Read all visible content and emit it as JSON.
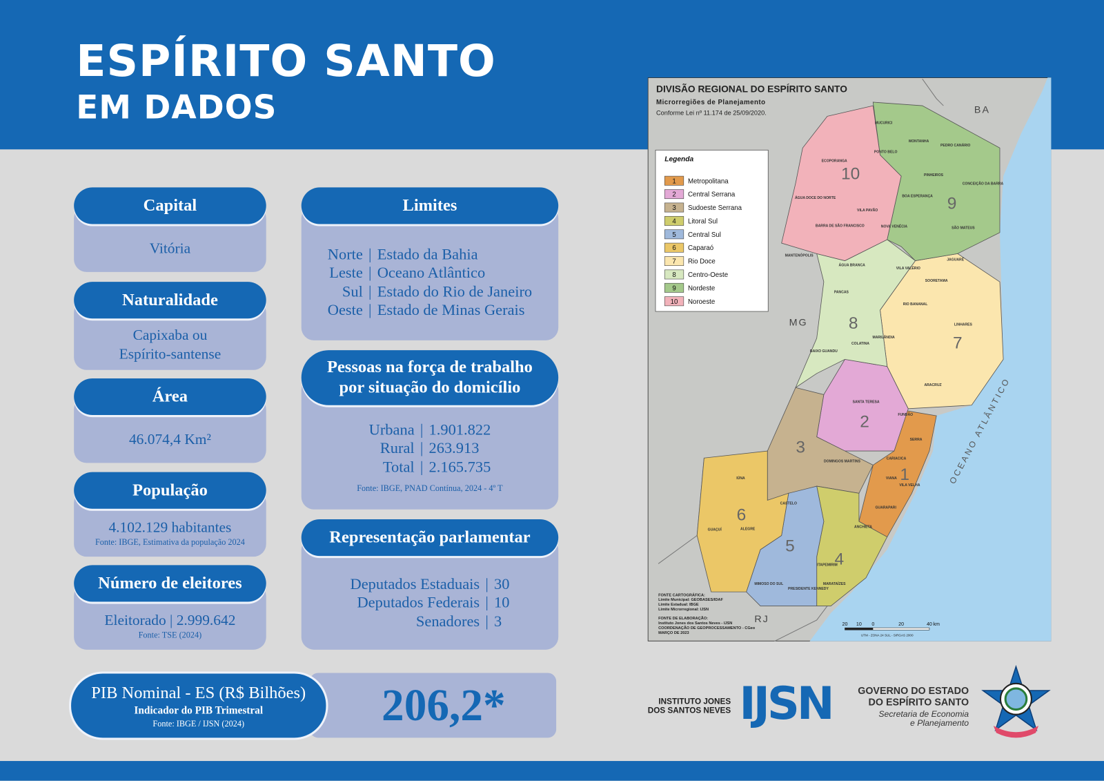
{
  "header": {
    "title": "ESPÍRITO SANTO",
    "subtitle": "EM DADOS"
  },
  "capital": {
    "title": "Capital",
    "value": "Vitória"
  },
  "naturalidade": {
    "title": "Naturalidade",
    "lines": [
      "Capixaba ou",
      "Espírito-santense"
    ]
  },
  "area": {
    "title": "Área",
    "value": "46.074,4 Km²"
  },
  "populacao": {
    "title": "População",
    "value": "4.102.129 habitantes",
    "source": "Fonte: IBGE, Estimativa da população 2024"
  },
  "eleitores": {
    "title": "Número de eleitores",
    "value": "Eleitorado | 2.999.642",
    "source": "Fonte: TSE (2024)"
  },
  "limites": {
    "title": "Limites",
    "separator": "|",
    "rows": [
      {
        "label": "Norte",
        "value": "Estado da Bahia"
      },
      {
        "label": "Leste",
        "value": "Oceano Atlântico"
      },
      {
        "label": "Sul",
        "value": "Estado do Rio de Janeiro"
      },
      {
        "label": "Oeste",
        "value": "Estado de Minas Gerais"
      }
    ]
  },
  "forca_trabalho": {
    "title_lines": [
      "Pessoas na força de trabalho",
      "por situação do domicílio"
    ],
    "separator": "|",
    "rows": [
      {
        "label": "Urbana",
        "value": "1.901.822"
      },
      {
        "label": "Rural",
        "value": "263.913"
      },
      {
        "label": "Total",
        "value": "2.165.735"
      }
    ],
    "source": "Fonte: IBGE, PNAD Contínua, 2024 - 4º T"
  },
  "representacao": {
    "title": "Representação parlamentar",
    "separator": "|",
    "rows": [
      {
        "label": "Deputados Estaduais",
        "value": "30"
      },
      {
        "label": "Deputados Federais",
        "value": "10"
      },
      {
        "label": "Senadores",
        "value": "3"
      }
    ]
  },
  "pib": {
    "title": "PIB Nominal - ES (R$ Bilhões)",
    "subtitle": "Indicador do PIB Trimestral",
    "source": "Fonte: IBGE / IJSN (2024)",
    "value": "206,2*"
  },
  "map": {
    "title": "DIVISÃO REGIONAL DO ESPÍRITO SANTO",
    "subtitle": "Microrregiões de Planejamento",
    "law": "Conforme Lei nº 11.174 de 25/09/2020.",
    "legend_title": "Legenda",
    "legend": [
      {
        "number": "1",
        "name": "Metropolitana",
        "color": "#e29a4c"
      },
      {
        "number": "2",
        "name": "Central Serrana",
        "color": "#e3a9d6"
      },
      {
        "number": "3",
        "name": "Sudoeste Serrana",
        "color": "#c6b28f"
      },
      {
        "number": "4",
        "name": "Litoral Sul",
        "color": "#cfcd6c"
      },
      {
        "number": "5",
        "name": "Central Sul",
        "color": "#9fb9dc"
      },
      {
        "number": "6",
        "name": "Caparaó",
        "color": "#ebc767"
      },
      {
        "number": "7",
        "name": "Rio Doce",
        "color": "#fbe6ae"
      },
      {
        "number": "8",
        "name": "Centro-Oeste",
        "color": "#d7e8c0"
      },
      {
        "number": "9",
        "name": "Nordeste",
        "color": "#a4c98b"
      },
      {
        "number": "10",
        "name": "Noroeste",
        "color": "#f2b2ba"
      }
    ],
    "neighbors": [
      "BA",
      "MG",
      "RJ"
    ],
    "ocean": "OCEANO ATLÂNTICO",
    "municipalities": [
      "MUCURICI",
      "MONTANHA",
      "PEDRO CANÁRIO",
      "PONTO BELO",
      "ECOPORANGA",
      "PINHEIROS",
      "CONCEIÇÃO DA BARRA",
      "BOA ESPERANÇA",
      "ÁGUA DOCE DO NORTE",
      "VILA PAVÃO",
      "SÃO MATEUS",
      "BARRA DE SÃO FRANCISCO",
      "NOVA VENÉCIA",
      "MANTENÓPOLIS",
      "JAGUARÉ",
      "ÁGUA BRANCA",
      "VILA VALÉRIO",
      "SOORETAMA",
      "PANCAS",
      "RIO BANANAL",
      "LINHARES",
      "COLATINA",
      "MARILÂNDIA",
      "BAIXO GUANDU",
      "ARACRUZ",
      "SANTA TERESA",
      "FUNDÃO",
      "SERRA",
      "CARIACICA",
      "VIANA",
      "VILA VELHA",
      "GUARAPARI",
      "DOMINGOS MARTINS",
      "CASTELO",
      "ALEGRE",
      "ANCHIETA",
      "IÚNA",
      "GUAÇUÍ",
      "MIMOSO DO SUL",
      "ITAPEMIRIM",
      "MARATAÍZES",
      "PRESIDENTE KENNEDY"
    ],
    "credits": [
      "FONTE CARTOGRÁFICA:",
      "Limite Municipal: GEOBASES/IDAF",
      "Limite Estadual: IBGE",
      "Limite Microrregional: IJSN",
      "FONTE DE ELABORAÇÃO:",
      "Instituto Jones dos Santos Neves - IJSN",
      "COORDENAÇÃO DE GEOPROCESSAMENTO - CGeo",
      "MARÇO DE 2023"
    ],
    "scale_labels": [
      "20",
      "10",
      "0",
      "20",
      "40",
      "km"
    ],
    "projection": "UTM - ZONA 24 SUL - SIRGAS 2000"
  },
  "logos": {
    "ijsn_name": [
      "INSTITUTO JONES",
      "DOS SANTOS NEVES"
    ],
    "ijsn_mark": "IJSN",
    "gov_name": [
      "GOVERNO DO ESTADO",
      "DO ESPÍRITO SANTO"
    ],
    "gov_sub": [
      "Secretaria de Economia",
      "e Planejamento"
    ]
  }
}
